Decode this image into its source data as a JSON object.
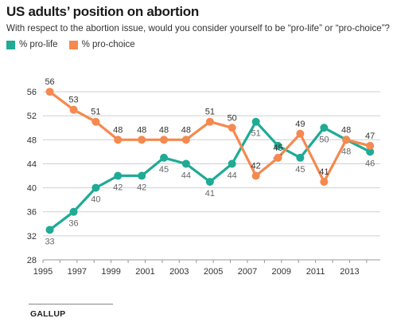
{
  "header": {
    "title": "US adults’ position on abortion",
    "subtitle": "With respect to the abortion issue, would you consider yourself to be “pro-life” or “pro-choice”?"
  },
  "legend": [
    {
      "label": "% pro-life",
      "color": "#1fab95"
    },
    {
      "label": "% pro-choice",
      "color": "#f5894f"
    }
  ],
  "source": "GALLUP",
  "chart_data": {
    "type": "line",
    "x_tick_labels": [
      "1995",
      "1997",
      "1999",
      "2001",
      "2003",
      "2005",
      "2007",
      "2009",
      "2011",
      "2013"
    ],
    "x_ticks": [
      1995,
      1997,
      1999,
      2001,
      2003,
      2005,
      2007,
      2009,
      2011,
      2013
    ],
    "xlim": [
      1995,
      2014.8
    ],
    "y_ticks": [
      28,
      32,
      36,
      40,
      44,
      48,
      52,
      56
    ],
    "ylim": [
      28,
      58
    ],
    "grid": "horizontal",
    "series": [
      {
        "name": "% pro-life",
        "color": "#1fab95",
        "label_position": "below",
        "points": [
          [
            1995.4,
            33
          ],
          [
            1996.8,
            36
          ],
          [
            1998.1,
            40
          ],
          [
            1999.4,
            42
          ],
          [
            2000.8,
            42
          ],
          [
            2002.1,
            45
          ],
          [
            2003.4,
            44
          ],
          [
            2004.8,
            41
          ],
          [
            2006.1,
            44
          ],
          [
            2007.5,
            51
          ],
          [
            2008.8,
            47
          ],
          [
            2010.1,
            45
          ],
          [
            2011.5,
            50
          ],
          [
            2012.8,
            48
          ],
          [
            2014.2,
            46
          ]
        ]
      },
      {
        "name": "% pro-choice",
        "color": "#f5894f",
        "label_position": "above",
        "points": [
          [
            1995.4,
            56
          ],
          [
            1996.8,
            53
          ],
          [
            1998.1,
            51
          ],
          [
            1999.4,
            48
          ],
          [
            2000.8,
            48
          ],
          [
            2002.1,
            48
          ],
          [
            2003.4,
            48
          ],
          [
            2004.8,
            51
          ],
          [
            2006.1,
            50
          ],
          [
            2007.5,
            42
          ],
          [
            2008.8,
            45
          ],
          [
            2010.1,
            49
          ],
          [
            2011.5,
            41
          ],
          [
            2012.8,
            48
          ],
          [
            2014.2,
            47
          ]
        ]
      }
    ]
  }
}
